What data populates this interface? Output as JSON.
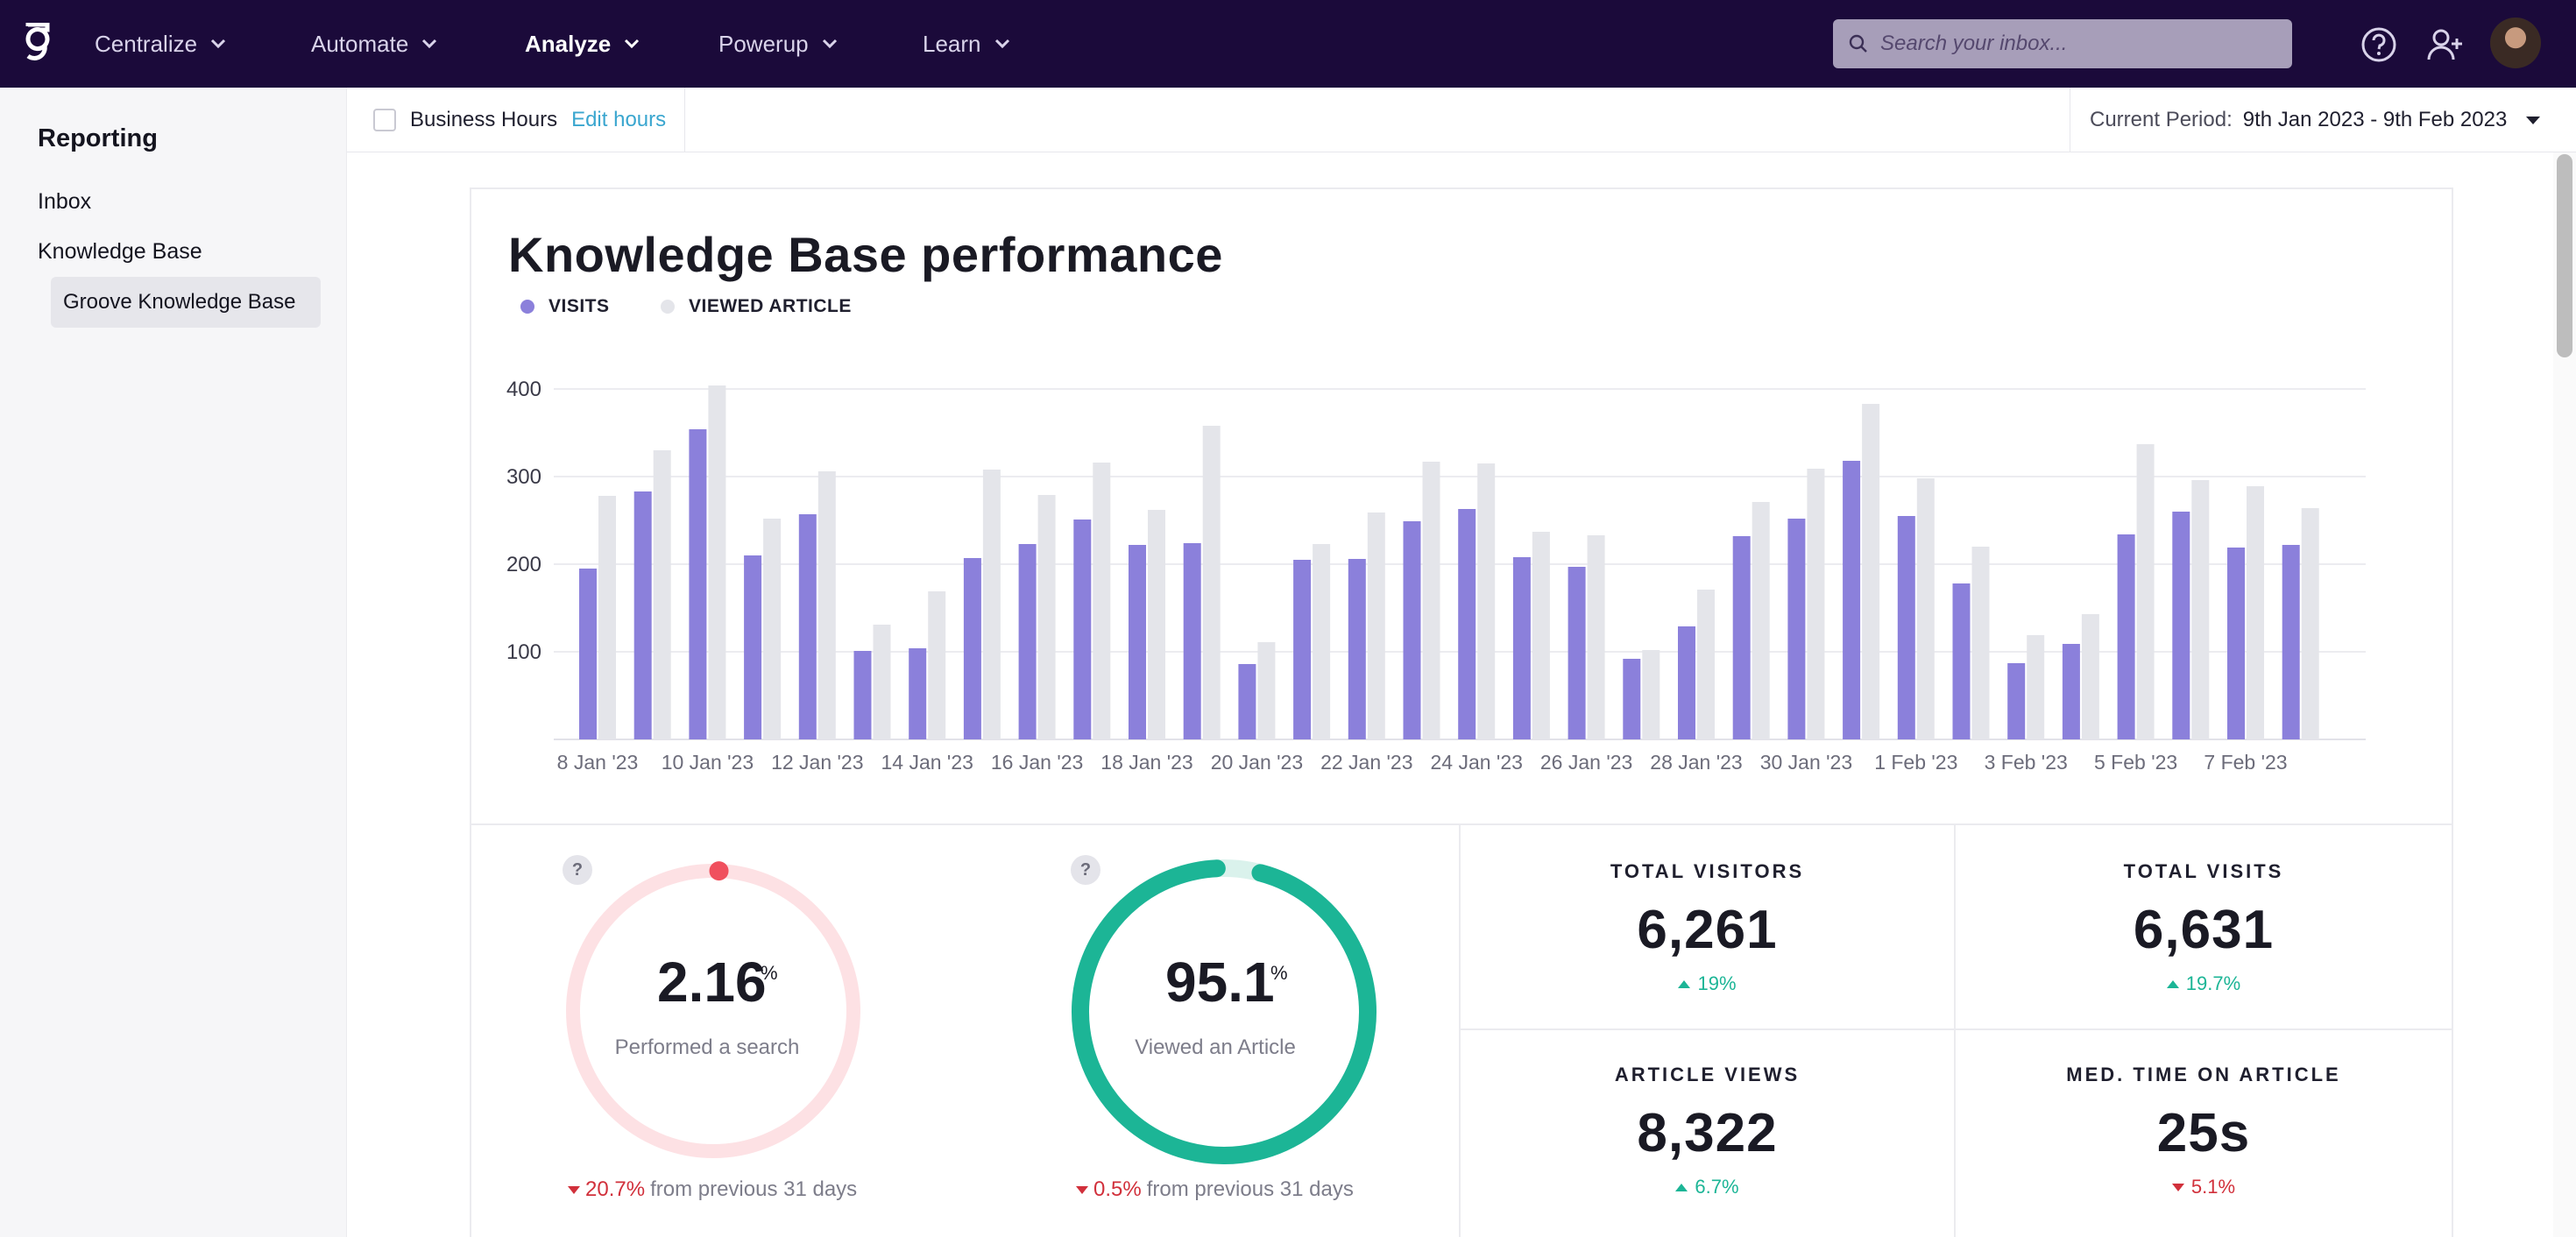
{
  "nav": {
    "items": [
      {
        "label": "Centralize"
      },
      {
        "label": "Automate"
      },
      {
        "label": "Analyze"
      },
      {
        "label": "Powerup"
      },
      {
        "label": "Learn"
      }
    ],
    "active": "Analyze",
    "search_placeholder": "Search your inbox...",
    "icons": [
      "groove-logo-icon",
      "search-icon",
      "help-circle-icon",
      "add-user-icon",
      "avatar"
    ]
  },
  "sidebar": {
    "title": "Reporting",
    "items": [
      {
        "label": "Inbox"
      },
      {
        "label": "Knowledge Base"
      }
    ],
    "sub_item": "Groove Knowledge Base"
  },
  "filter": {
    "business_hours_label": "Business Hours",
    "edit_hours": "Edit hours",
    "business_hours_checked": false,
    "period_label": "Current Period:",
    "period_value": "9th Jan 2023 - 9th Feb 2023"
  },
  "report": {
    "title": "Knowledge Base performance",
    "legend": [
      {
        "label": "VISITS",
        "color": "#8b80db"
      },
      {
        "label": "VIEWED ARTICLE",
        "color": "#e4e5ea"
      }
    ]
  },
  "chart_data": {
    "type": "bar",
    "x_tick_labels": [
      "8 Jan '23",
      "10 Jan '23",
      "12 Jan '23",
      "14 Jan '23",
      "16 Jan '23",
      "18 Jan '23",
      "20 Jan '23",
      "22 Jan '23",
      "24 Jan '23",
      "26 Jan '23",
      "28 Jan '23",
      "30 Jan '23",
      "1 Feb '23",
      "3 Feb '23",
      "5 Feb '23",
      "7 Feb '23"
    ],
    "y_ticks": [
      100,
      200,
      300,
      400
    ],
    "ylim": [
      0,
      400
    ],
    "grid": true,
    "series": [
      {
        "name": "VISITS",
        "color": "#8b80db",
        "values": [
          195,
          283,
          354,
          210,
          257,
          101,
          104,
          207,
          223,
          251,
          222,
          224,
          86,
          205,
          206,
          249,
          263,
          208,
          197,
          92,
          129,
          232,
          252,
          318,
          255,
          178,
          87,
          109,
          234,
          260,
          219,
          222
        ]
      },
      {
        "name": "VIEWED ARTICLE",
        "color": "#e4e5ea",
        "values": [
          278,
          330,
          404,
          252,
          306,
          131,
          169,
          308,
          279,
          316,
          262,
          358,
          111,
          223,
          259,
          317,
          315,
          237,
          233,
          102,
          171,
          271,
          309,
          383,
          298,
          220,
          119,
          143,
          337,
          296,
          289,
          264
        ]
      }
    ]
  },
  "gauges": [
    {
      "value": "2.16",
      "unit": "%",
      "label": "Performed a search",
      "fraction": 0.0216,
      "color": "#f0505e",
      "track": "#fde1e4",
      "change": "20.7%",
      "change_text": "from previous 31 days",
      "direction": "down"
    },
    {
      "value": "95.1",
      "unit": "%",
      "label": "Viewed an Article",
      "fraction": 0.951,
      "color": "#1cb596",
      "track": "#daf2ec",
      "change": "0.5%",
      "change_text": "from previous 31 days",
      "direction": "down"
    }
  ],
  "stats": [
    {
      "label": "TOTAL VISITORS",
      "value": "6,261",
      "change": "19%",
      "direction": "up"
    },
    {
      "label": "TOTAL VISITS",
      "value": "6,631",
      "change": "19.7%",
      "direction": "up"
    },
    {
      "label": "ARTICLE VIEWS",
      "value": "8,322",
      "change": "6.7%",
      "direction": "up"
    },
    {
      "label": "MED. TIME ON ARTICLE",
      "value": "25s",
      "change": "5.1%",
      "direction": "down"
    }
  ]
}
